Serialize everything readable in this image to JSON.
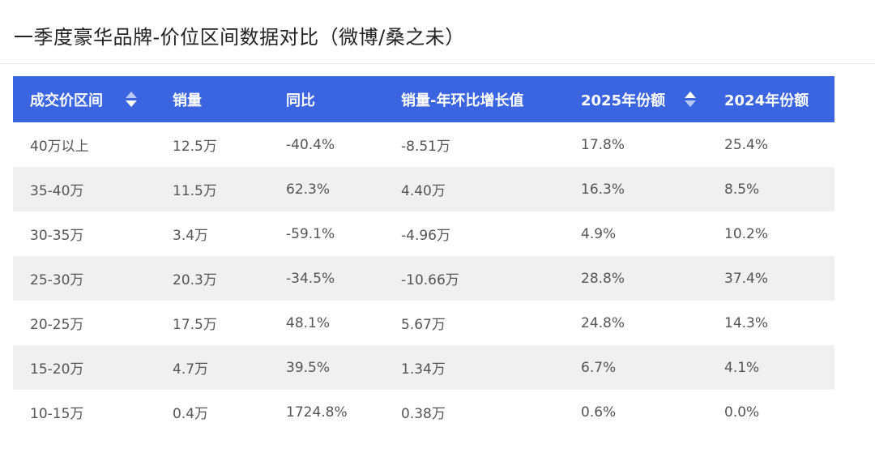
{
  "title": "一季度豪华品牌-价位区间数据对比（微博/桑之未）",
  "table": {
    "headers": [
      "成交价区间",
      "销量",
      "同比",
      "销量-年环比增长值",
      "2025年份额",
      "2024年份额"
    ],
    "rows": [
      [
        "40万以上",
        "12.5万",
        "-40.4%",
        "-8.51万",
        "17.8%",
        "25.4%"
      ],
      [
        "35-40万",
        "11.5万",
        "62.3%",
        "4.40万",
        "16.3%",
        "8.5%"
      ],
      [
        "30-35万",
        "3.4万",
        "-59.1%",
        "-4.96万",
        "4.9%",
        "10.2%"
      ],
      [
        "25-30万",
        "20.3万",
        "-34.5%",
        "-10.66万",
        "28.8%",
        "37.4%"
      ],
      [
        "20-25万",
        "17.5万",
        "48.1%",
        "5.67万",
        "24.8%",
        "14.3%"
      ],
      [
        "15-20万",
        "4.7万",
        "39.5%",
        "1.34万",
        "6.7%",
        "4.1%"
      ],
      [
        "10-15万",
        "0.4万",
        "1724.8%",
        "0.38万",
        "0.6%",
        "0.0%"
      ]
    ]
  },
  "colors": {
    "header_bg": "#3a64e0",
    "header_text": "#ffffff",
    "alt_row_bg": "#f0f0f0",
    "body_text": "#555555"
  },
  "icons": {
    "sort": "sort-icon"
  }
}
